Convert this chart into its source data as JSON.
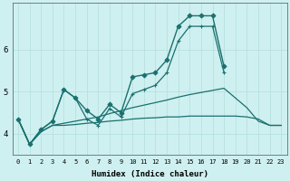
{
  "xlabel": "Humidex (Indice chaleur)",
  "bg_color": "#cff0f0",
  "grid_color": "#b8e0e0",
  "line_color": "#1a7070",
  "xlim": [
    -0.5,
    23.5
  ],
  "ylim": [
    3.5,
    7.1
  ],
  "yticks": [
    4,
    5,
    6
  ],
  "xticks": [
    0,
    1,
    2,
    3,
    4,
    5,
    6,
    7,
    8,
    9,
    10,
    11,
    12,
    13,
    14,
    15,
    16,
    17,
    18,
    19,
    20,
    21,
    22,
    23
  ],
  "series": [
    {
      "x": [
        0,
        1,
        2,
        3,
        4,
        5,
        6,
        7,
        8,
        9,
        10,
        11,
        12,
        13,
        14,
        15,
        16,
        17,
        18,
        19,
        20,
        21,
        22,
        23
      ],
      "y": [
        4.35,
        3.75,
        4.1,
        4.3,
        5.05,
        4.85,
        4.55,
        4.35,
        4.7,
        4.5,
        5.35,
        5.4,
        5.45,
        5.75,
        6.55,
        6.8,
        6.8,
        6.8,
        5.6,
        null,
        null,
        null,
        null,
        null
      ],
      "marker": "D",
      "markersize": 2.5,
      "linewidth": 1.0
    },
    {
      "x": [
        0,
        1,
        2,
        3,
        4,
        5,
        6,
        7,
        8,
        9,
        10,
        11,
        12,
        13,
        14,
        15,
        16,
        17,
        18,
        19,
        20,
        21,
        22,
        23
      ],
      "y": [
        4.35,
        3.75,
        4.1,
        4.3,
        5.05,
        4.85,
        4.35,
        4.2,
        4.6,
        4.4,
        4.95,
        5.05,
        5.15,
        5.45,
        6.2,
        6.55,
        6.55,
        6.55,
        5.45,
        null,
        null,
        null,
        null,
        null
      ],
      "marker": "+",
      "markersize": 3.5,
      "linewidth": 0.9
    },
    {
      "x": [
        0,
        1,
        2,
        3,
        4,
        5,
        6,
        7,
        8,
        9,
        10,
        11,
        12,
        13,
        14,
        15,
        16,
        17,
        18,
        19,
        20,
        21,
        22,
        23
      ],
      "y": [
        4.35,
        3.75,
        4.05,
        4.2,
        4.2,
        4.22,
        4.25,
        4.27,
        4.3,
        4.32,
        4.35,
        4.37,
        4.38,
        4.4,
        4.4,
        4.42,
        4.42,
        4.42,
        4.42,
        4.42,
        4.4,
        4.35,
        4.2,
        4.2
      ],
      "marker": null,
      "markersize": 0,
      "linewidth": 0.9
    },
    {
      "x": [
        0,
        1,
        2,
        3,
        4,
        5,
        6,
        7,
        8,
        9,
        10,
        11,
        12,
        13,
        14,
        15,
        16,
        17,
        18,
        19,
        20,
        21,
        22,
        23
      ],
      "y": [
        4.35,
        3.75,
        4.05,
        4.2,
        4.25,
        4.3,
        4.35,
        4.4,
        4.48,
        4.55,
        4.62,
        4.68,
        4.74,
        4.8,
        4.87,
        4.93,
        4.98,
        5.03,
        5.08,
        4.85,
        4.62,
        4.3,
        4.2,
        4.2
      ],
      "marker": null,
      "markersize": 0,
      "linewidth": 0.9
    }
  ]
}
